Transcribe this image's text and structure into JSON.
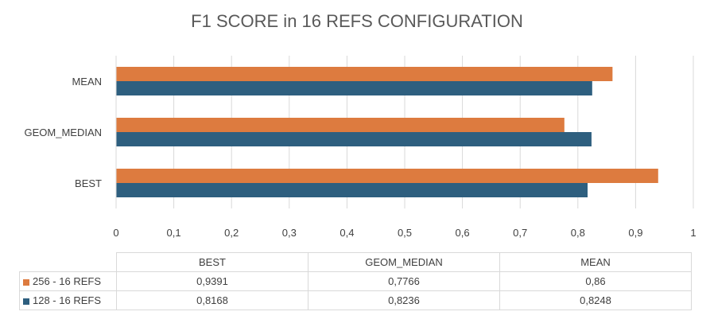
{
  "colors": {
    "s256": "#dd7b3f",
    "s128": "#2e5f7f"
  },
  "chart_data": {
    "type": "bar",
    "orientation": "horizontal",
    "title": "F1 SCORE in 16 REFS CONFIGURATION",
    "categories": [
      "BEST",
      "GEOM_MEDIAN",
      "MEAN"
    ],
    "series": [
      {
        "name": "256 - 16 REFS",
        "values": [
          0.9391,
          0.7766,
          0.86
        ]
      },
      {
        "name": "128 - 16 REFS",
        "values": [
          0.8168,
          0.8236,
          0.8248
        ]
      }
    ],
    "xlim": [
      0,
      1
    ],
    "xticks": [
      "0",
      "0,1",
      "0,2",
      "0,3",
      "0,4",
      "0,5",
      "0,6",
      "0,7",
      "0,8",
      "0,9",
      "1"
    ],
    "grid": true,
    "legend": "data-table-below",
    "table_values": [
      [
        "0,9391",
        "0,7766",
        "0,86"
      ],
      [
        "0,8168",
        "0,8236",
        "0,8248"
      ]
    ]
  }
}
